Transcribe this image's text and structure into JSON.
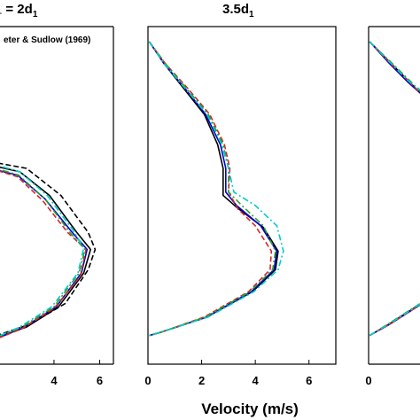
{
  "chart_data": {
    "type": "line",
    "xlabel": "Velocity (m/s)",
    "panels": [
      {
        "title": "₁ = 2d",
        "title_sub": "1",
        "legend_label": "eter & Sudlow (1969)",
        "xlim": [
          1.25,
          6.6
        ],
        "ylim": [
          0,
          1
        ],
        "xticks": [
          4,
          6
        ],
        "series": [
          {
            "color": "#000000",
            "style": "solid",
            "points": [
              [
                1.2,
                0.59
              ],
              [
                2.5,
                0.57
              ],
              [
                3.8,
                0.5
              ],
              [
                5.0,
                0.39
              ],
              [
                5.6,
                0.34
              ],
              [
                5.3,
                0.27
              ],
              [
                4.2,
                0.17
              ],
              [
                2.8,
                0.11
              ],
              [
                1.3,
                0.075
              ]
            ]
          },
          {
            "color": "#000000",
            "style": "dash",
            "points": [
              [
                1.2,
                0.6
              ],
              [
                2.8,
                0.58
              ],
              [
                4.3,
                0.5
              ],
              [
                5.5,
                0.39
              ],
              [
                5.8,
                0.34
              ],
              [
                5.5,
                0.28
              ],
              [
                4.5,
                0.18
              ],
              [
                3.0,
                0.12
              ],
              [
                1.3,
                0.08
              ]
            ]
          },
          {
            "color": "#0000cc",
            "style": "solid",
            "points": [
              [
                1.2,
                0.58
              ],
              [
                2.4,
                0.56
              ],
              [
                3.6,
                0.49
              ],
              [
                4.8,
                0.39
              ],
              [
                5.45,
                0.34
              ],
              [
                5.2,
                0.27
              ],
              [
                4.1,
                0.17
              ],
              [
                2.7,
                0.11
              ],
              [
                1.3,
                0.07
              ]
            ]
          },
          {
            "color": "#d62728",
            "style": "dash",
            "points": [
              [
                1.2,
                0.58
              ],
              [
                2.4,
                0.555
              ],
              [
                3.5,
                0.485
              ],
              [
                4.6,
                0.39
              ],
              [
                5.4,
                0.34
              ],
              [
                5.15,
                0.26
              ],
              [
                4.0,
                0.165
              ],
              [
                2.6,
                0.105
              ],
              [
                1.3,
                0.07
              ]
            ]
          },
          {
            "color": "#2ca02c",
            "style": "dashdot",
            "points": [
              [
                1.2,
                0.585
              ],
              [
                2.45,
                0.56
              ],
              [
                3.6,
                0.49
              ],
              [
                4.7,
                0.39
              ],
              [
                5.35,
                0.34
              ],
              [
                5.1,
                0.27
              ],
              [
                4.0,
                0.17
              ],
              [
                2.6,
                0.11
              ],
              [
                1.3,
                0.075
              ]
            ]
          },
          {
            "color": "#00cccc",
            "style": "dashdot",
            "points": [
              [
                1.2,
                0.595
              ],
              [
                2.5,
                0.57
              ],
              [
                3.7,
                0.5
              ],
              [
                4.8,
                0.4
              ],
              [
                5.3,
                0.345
              ],
              [
                5.05,
                0.27
              ],
              [
                3.9,
                0.17
              ],
              [
                2.5,
                0.11
              ],
              [
                1.3,
                0.075
              ]
            ]
          }
        ]
      },
      {
        "title": "3.5d",
        "title_sub": "1",
        "xlim": [
          0,
          7
        ],
        "ylim": [
          0,
          1
        ],
        "xticks": [
          0,
          2,
          4,
          6
        ],
        "series": [
          {
            "color": "#000000",
            "style": "solid",
            "points": [
              [
                0.05,
                0.955
              ],
              [
                0.6,
                0.89
              ],
              [
                1.3,
                0.82
              ],
              [
                2.1,
                0.74
              ],
              [
                2.6,
                0.65
              ],
              [
                2.8,
                0.58
              ],
              [
                2.8,
                0.5
              ],
              [
                3.3,
                0.465
              ],
              [
                4.3,
                0.405
              ],
              [
                4.85,
                0.335
              ],
              [
                4.75,
                0.28
              ],
              [
                3.9,
                0.215
              ],
              [
                2.2,
                0.14
              ],
              [
                0.5,
                0.095
              ],
              [
                0.05,
                0.085
              ]
            ]
          },
          {
            "color": "#0000cc",
            "style": "solid",
            "points": [
              [
                0.05,
                0.955
              ],
              [
                0.6,
                0.89
              ],
              [
                1.35,
                0.82
              ],
              [
                2.15,
                0.74
              ],
              [
                2.7,
                0.65
              ],
              [
                2.9,
                0.58
              ],
              [
                2.9,
                0.51
              ],
              [
                3.3,
                0.47
              ],
              [
                4.2,
                0.41
              ],
              [
                4.8,
                0.335
              ],
              [
                4.7,
                0.28
              ],
              [
                3.85,
                0.215
              ],
              [
                2.2,
                0.14
              ],
              [
                0.5,
                0.095
              ],
              [
                0.05,
                0.085
              ]
            ]
          },
          {
            "color": "#d62728",
            "style": "dash",
            "points": [
              [
                0.05,
                0.955
              ],
              [
                0.65,
                0.89
              ],
              [
                1.45,
                0.82
              ],
              [
                2.3,
                0.74
              ],
              [
                2.85,
                0.65
              ],
              [
                3.05,
                0.58
              ],
              [
                3.0,
                0.51
              ],
              [
                3.35,
                0.46
              ],
              [
                4.0,
                0.41
              ],
              [
                4.6,
                0.335
              ],
              [
                4.55,
                0.28
              ],
              [
                3.75,
                0.215
              ],
              [
                2.1,
                0.14
              ],
              [
                0.5,
                0.095
              ],
              [
                0.05,
                0.085
              ]
            ]
          },
          {
            "color": "#2ca02c",
            "style": "dashdot",
            "points": [
              [
                0.05,
                0.955
              ],
              [
                0.65,
                0.89
              ],
              [
                1.4,
                0.82
              ],
              [
                2.25,
                0.74
              ],
              [
                2.8,
                0.65
              ],
              [
                3.0,
                0.58
              ],
              [
                3.0,
                0.51
              ],
              [
                3.5,
                0.47
              ],
              [
                4.3,
                0.41
              ],
              [
                4.75,
                0.335
              ],
              [
                4.65,
                0.28
              ],
              [
                3.8,
                0.215
              ],
              [
                2.15,
                0.14
              ],
              [
                0.5,
                0.095
              ],
              [
                0.05,
                0.085
              ]
            ]
          },
          {
            "color": "#00cccc",
            "style": "dashdot",
            "points": [
              [
                0.05,
                0.955
              ],
              [
                0.6,
                0.89
              ],
              [
                1.35,
                0.82
              ],
              [
                2.2,
                0.74
              ],
              [
                2.75,
                0.65
              ],
              [
                3.0,
                0.58
              ],
              [
                3.2,
                0.51
              ],
              [
                4.0,
                0.47
              ],
              [
                4.8,
                0.41
              ],
              [
                5.05,
                0.335
              ],
              [
                4.85,
                0.28
              ],
              [
                3.95,
                0.215
              ],
              [
                2.25,
                0.14
              ],
              [
                0.5,
                0.095
              ],
              [
                0.05,
                0.085
              ]
            ]
          }
        ]
      },
      {
        "title": "",
        "xlim": [
          0,
          2
        ],
        "ylim": [
          0,
          1
        ],
        "xticks": [
          0
        ],
        "series": [
          {
            "color": "#000000",
            "style": "solid",
            "points": [
              [
                0.02,
                0.955
              ],
              [
                0.4,
                0.895
              ],
              [
                0.75,
                0.84
              ],
              [
                1.0,
                0.8
              ],
              [
                1.2,
                0.77
              ]
            ]
          },
          {
            "color": "#0000cc",
            "style": "solid",
            "points": [
              [
                0.02,
                0.955
              ],
              [
                0.4,
                0.89
              ],
              [
                0.75,
                0.835
              ],
              [
                1.0,
                0.8
              ],
              [
                1.2,
                0.77
              ]
            ]
          },
          {
            "color": "#d62728",
            "style": "dash",
            "points": [
              [
                0.02,
                0.955
              ],
              [
                0.42,
                0.89
              ],
              [
                0.78,
                0.835
              ],
              [
                1.0,
                0.8
              ],
              [
                1.2,
                0.772
              ]
            ]
          },
          {
            "color": "#2ca02c",
            "style": "dashdot",
            "points": [
              [
                0.02,
                0.955
              ],
              [
                0.42,
                0.895
              ],
              [
                0.78,
                0.84
              ],
              [
                1.0,
                0.805
              ],
              [
                1.2,
                0.775
              ]
            ]
          },
          {
            "color": "#00cccc",
            "style": "dashdot",
            "points": [
              [
                0.02,
                0.955
              ],
              [
                0.4,
                0.895
              ],
              [
                0.75,
                0.84
              ],
              [
                1.0,
                0.81
              ],
              [
                1.2,
                0.78
              ]
            ]
          },
          {
            "color": "#000000",
            "style": "solid",
            "points": [
              [
                0.02,
                0.085
              ],
              [
                0.4,
                0.12
              ],
              [
                0.8,
                0.16
              ],
              [
                1.2,
                0.2
              ]
            ]
          },
          {
            "color": "#0000cc",
            "style": "solid",
            "points": [
              [
                0.02,
                0.085
              ],
              [
                0.4,
                0.118
              ],
              [
                0.8,
                0.158
              ],
              [
                1.2,
                0.198
              ]
            ]
          },
          {
            "color": "#d62728",
            "style": "dash",
            "points": [
              [
                0.02,
                0.085
              ],
              [
                0.42,
                0.12
              ],
              [
                0.82,
                0.16
              ],
              [
                1.2,
                0.2
              ]
            ]
          },
          {
            "color": "#2ca02c",
            "style": "dashdot",
            "points": [
              [
                0.02,
                0.085
              ],
              [
                0.4,
                0.122
              ],
              [
                0.8,
                0.162
              ],
              [
                1.2,
                0.202
              ]
            ]
          },
          {
            "color": "#00cccc",
            "style": "dashdot",
            "points": [
              [
                0.02,
                0.085
              ],
              [
                0.4,
                0.12
              ],
              [
                0.8,
                0.16
              ],
              [
                1.2,
                0.2
              ]
            ]
          }
        ]
      }
    ]
  }
}
